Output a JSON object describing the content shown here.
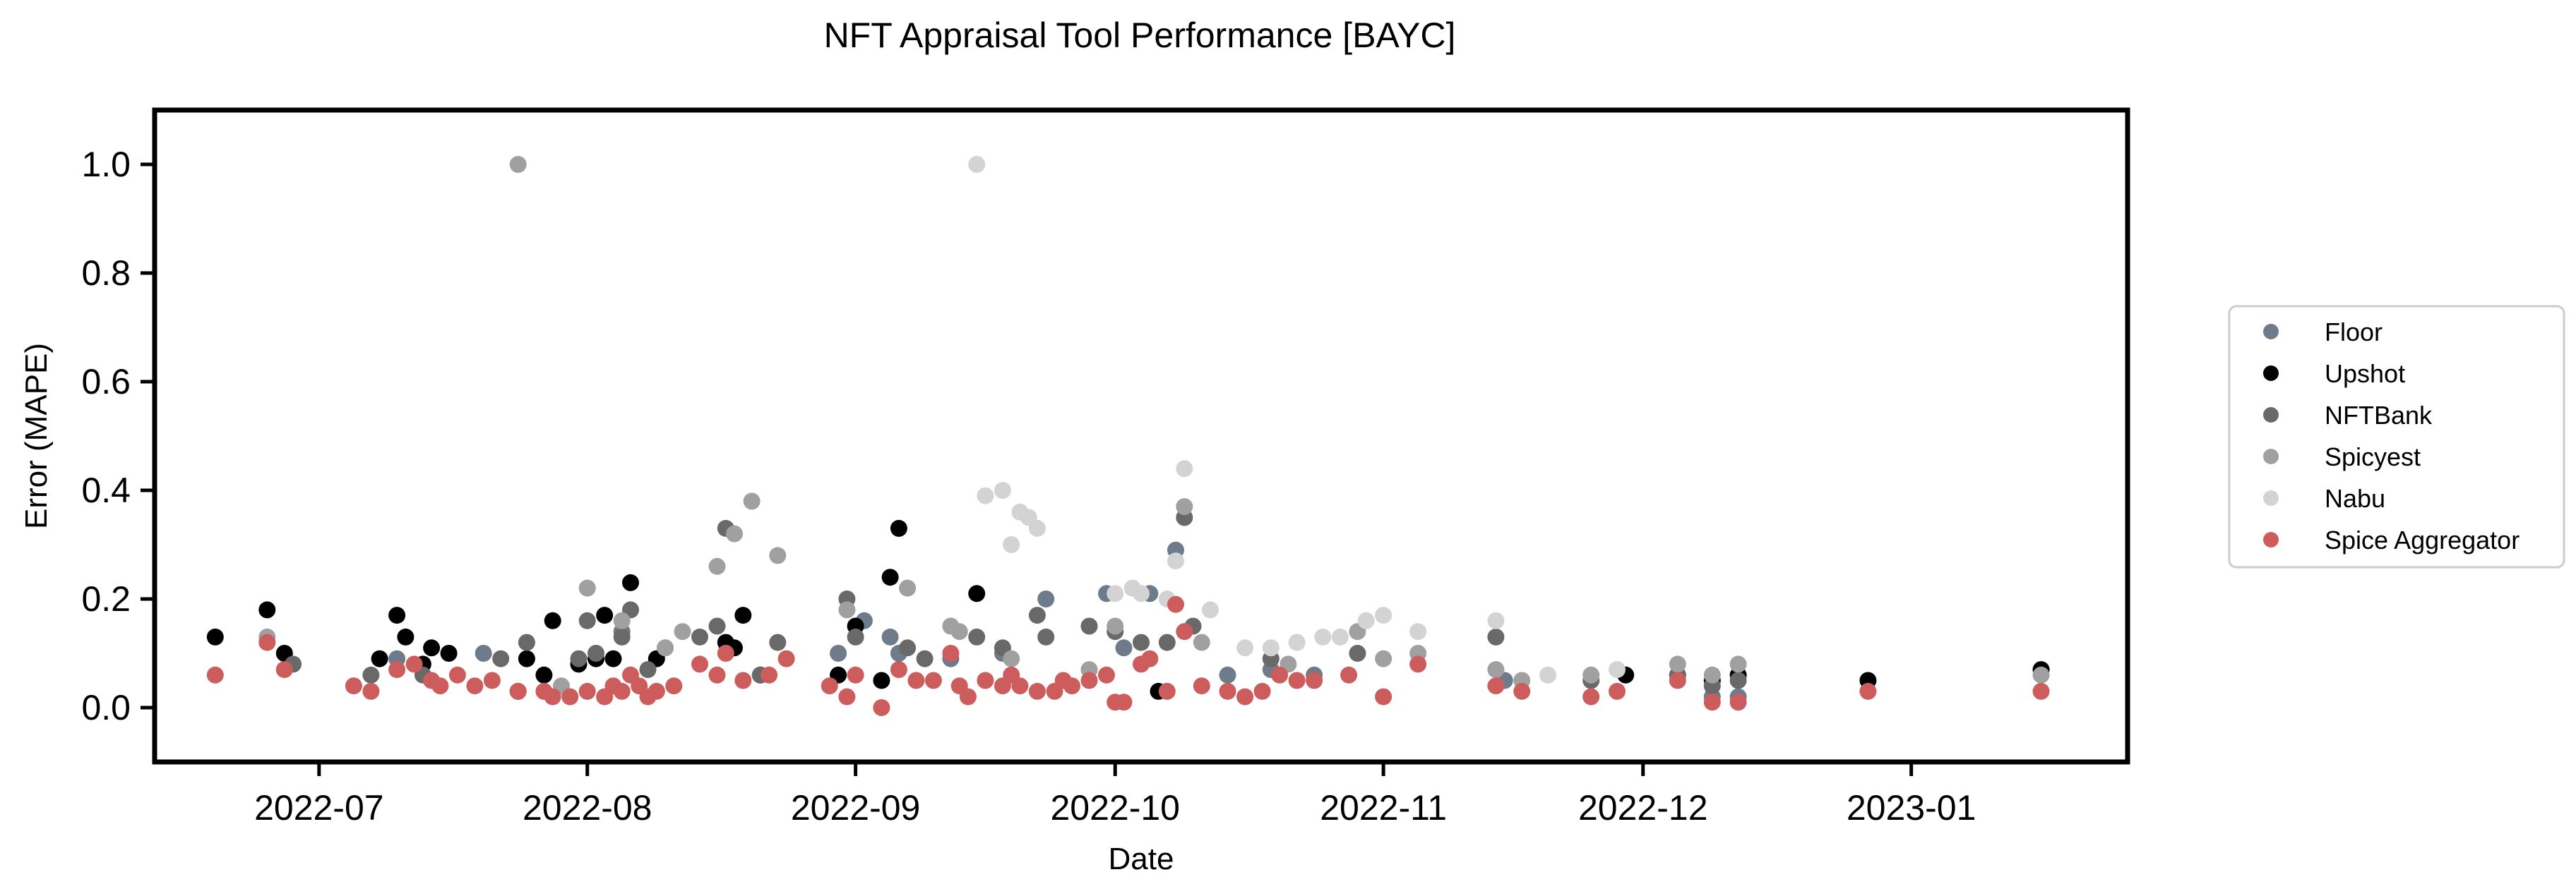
{
  "chart_data": {
    "type": "scatter",
    "title": "NFT Appraisal Tool Performance [BAYC]",
    "xlabel": "Date",
    "ylabel": "Error (MAPE)",
    "xlim": [
      "2022-06-12",
      "2023-01-26"
    ],
    "ylim": [
      -0.1,
      1.1
    ],
    "x_ticks": [
      "2022-07-01",
      "2022-08-01",
      "2022-09-01",
      "2022-10-01",
      "2022-11-01",
      "2022-12-01",
      "2023-01-01"
    ],
    "x_tick_labels": [
      "2022-07",
      "2022-08",
      "2022-09",
      "2022-10",
      "2022-11",
      "2022-12",
      "2023-01"
    ],
    "y_ticks": [
      0.0,
      0.2,
      0.4,
      0.6,
      0.8,
      1.0
    ],
    "y_tick_labels": [
      "0.0",
      "0.2",
      "0.4",
      "0.6",
      "0.8",
      "1.0"
    ],
    "grid": false,
    "legend_position": "right-center",
    "series": [
      {
        "name": "Floor",
        "color": "#6e7b8b",
        "points": [
          [
            "2022-07-10",
            0.09
          ],
          [
            "2022-07-20",
            0.1
          ],
          [
            "2022-08-05",
            0.14
          ],
          [
            "2022-08-10",
            0.11
          ],
          [
            "2022-08-30",
            0.1
          ],
          [
            "2022-09-02",
            0.16
          ],
          [
            "2022-09-05",
            0.13
          ],
          [
            "2022-09-06",
            0.1
          ],
          [
            "2022-09-12",
            0.09
          ],
          [
            "2022-09-18",
            0.1
          ],
          [
            "2022-09-23",
            0.2
          ],
          [
            "2022-09-30",
            0.21
          ],
          [
            "2022-10-02",
            0.11
          ],
          [
            "2022-10-05",
            0.21
          ],
          [
            "2022-10-08",
            0.29
          ],
          [
            "2022-10-14",
            0.06
          ],
          [
            "2022-10-19",
            0.07
          ],
          [
            "2022-10-24",
            0.06
          ],
          [
            "2022-11-15",
            0.05
          ],
          [
            "2022-12-09",
            0.02
          ],
          [
            "2022-12-12",
            0.02
          ]
        ]
      },
      {
        "name": "Upshot",
        "color": "#000000",
        "points": [
          [
            "2022-06-19",
            0.13
          ],
          [
            "2022-06-25",
            0.18
          ],
          [
            "2022-06-27",
            0.1
          ],
          [
            "2022-07-08",
            0.09
          ],
          [
            "2022-07-10",
            0.17
          ],
          [
            "2022-07-11",
            0.13
          ],
          [
            "2022-07-13",
            0.08
          ],
          [
            "2022-07-14",
            0.11
          ],
          [
            "2022-07-16",
            0.1
          ],
          [
            "2022-07-24",
            0.03
          ],
          [
            "2022-07-25",
            0.09
          ],
          [
            "2022-07-27",
            0.06
          ],
          [
            "2022-07-28",
            0.16
          ],
          [
            "2022-07-31",
            0.08
          ],
          [
            "2022-08-02",
            0.09
          ],
          [
            "2022-08-03",
            0.17
          ],
          [
            "2022-08-04",
            0.09
          ],
          [
            "2022-08-06",
            0.23
          ],
          [
            "2022-08-09",
            0.09
          ],
          [
            "2022-08-17",
            0.12
          ],
          [
            "2022-08-18",
            0.11
          ],
          [
            "2022-08-19",
            0.17
          ],
          [
            "2022-08-21",
            0.06
          ],
          [
            "2022-08-30",
            0.06
          ],
          [
            "2022-09-01",
            0.15
          ],
          [
            "2022-09-04",
            0.05
          ],
          [
            "2022-09-05",
            0.24
          ],
          [
            "2022-09-06",
            0.33
          ],
          [
            "2022-09-15",
            0.21
          ],
          [
            "2022-10-06",
            0.03
          ],
          [
            "2022-11-29",
            0.06
          ],
          [
            "2022-12-05",
            0.06
          ],
          [
            "2022-12-09",
            0.05
          ],
          [
            "2022-12-12",
            0.06
          ],
          [
            "2022-12-27",
            0.05
          ],
          [
            "2023-01-16",
            0.07
          ]
        ]
      },
      {
        "name": "NFTBank",
        "color": "#696969",
        "points": [
          [
            "2022-06-28",
            0.08
          ],
          [
            "2022-07-07",
            0.06
          ],
          [
            "2022-07-13",
            0.06
          ],
          [
            "2022-07-22",
            0.09
          ],
          [
            "2022-07-25",
            0.12
          ],
          [
            "2022-07-31",
            0.09
          ],
          [
            "2022-08-01",
            0.16
          ],
          [
            "2022-08-02",
            0.1
          ],
          [
            "2022-08-05",
            0.13
          ],
          [
            "2022-08-06",
            0.18
          ],
          [
            "2022-08-08",
            0.07
          ],
          [
            "2022-08-14",
            0.13
          ],
          [
            "2022-08-16",
            0.15
          ],
          [
            "2022-08-17",
            0.33
          ],
          [
            "2022-08-21",
            0.06
          ],
          [
            "2022-08-23",
            0.12
          ],
          [
            "2022-08-31",
            0.2
          ],
          [
            "2022-09-01",
            0.13
          ],
          [
            "2022-09-07",
            0.11
          ],
          [
            "2022-09-09",
            0.09
          ],
          [
            "2022-09-15",
            0.13
          ],
          [
            "2022-09-18",
            0.11
          ],
          [
            "2022-09-22",
            0.17
          ],
          [
            "2022-09-23",
            0.13
          ],
          [
            "2022-09-28",
            0.15
          ],
          [
            "2022-10-01",
            0.14
          ],
          [
            "2022-10-04",
            0.12
          ],
          [
            "2022-10-07",
            0.12
          ],
          [
            "2022-10-09",
            0.35
          ],
          [
            "2022-10-10",
            0.15
          ],
          [
            "2022-10-19",
            0.09
          ],
          [
            "2022-10-29",
            0.1
          ],
          [
            "2022-11-14",
            0.13
          ],
          [
            "2022-11-25",
            0.05
          ],
          [
            "2022-12-05",
            0.06
          ],
          [
            "2022-12-09",
            0.04
          ],
          [
            "2022-12-12",
            0.05
          ]
        ]
      },
      {
        "name": "Spicyest",
        "color": "#a0a0a0",
        "points": [
          [
            "2022-06-25",
            0.13
          ],
          [
            "2022-07-24",
            1.0
          ],
          [
            "2022-07-29",
            0.04
          ],
          [
            "2022-08-01",
            0.22
          ],
          [
            "2022-08-05",
            0.16
          ],
          [
            "2022-08-10",
            0.11
          ],
          [
            "2022-08-12",
            0.14
          ],
          [
            "2022-08-16",
            0.26
          ],
          [
            "2022-08-18",
            0.32
          ],
          [
            "2022-08-20",
            0.38
          ],
          [
            "2022-08-23",
            0.28
          ],
          [
            "2022-08-31",
            0.18
          ],
          [
            "2022-09-07",
            0.22
          ],
          [
            "2022-09-12",
            0.15
          ],
          [
            "2022-09-13",
            0.14
          ],
          [
            "2022-09-19",
            0.09
          ],
          [
            "2022-09-28",
            0.07
          ],
          [
            "2022-10-01",
            0.15
          ],
          [
            "2022-10-09",
            0.37
          ],
          [
            "2022-10-11",
            0.12
          ],
          [
            "2022-10-21",
            0.08
          ],
          [
            "2022-10-29",
            0.14
          ],
          [
            "2022-11-01",
            0.09
          ],
          [
            "2022-11-05",
            0.1
          ],
          [
            "2022-11-14",
            0.07
          ],
          [
            "2022-11-17",
            0.05
          ],
          [
            "2022-11-25",
            0.06
          ],
          [
            "2022-12-05",
            0.08
          ],
          [
            "2022-12-09",
            0.06
          ],
          [
            "2022-12-12",
            0.08
          ],
          [
            "2023-01-16",
            0.06
          ]
        ]
      },
      {
        "name": "Nabu",
        "color": "#d3d3d3",
        "points": [
          [
            "2022-09-15",
            1.0
          ],
          [
            "2022-09-16",
            0.39
          ],
          [
            "2022-09-18",
            0.4
          ],
          [
            "2022-09-19",
            0.3
          ],
          [
            "2022-09-20",
            0.36
          ],
          [
            "2022-09-21",
            0.35
          ],
          [
            "2022-09-22",
            0.33
          ],
          [
            "2022-10-01",
            0.21
          ],
          [
            "2022-10-03",
            0.22
          ],
          [
            "2022-10-04",
            0.21
          ],
          [
            "2022-10-07",
            0.2
          ],
          [
            "2022-10-08",
            0.27
          ],
          [
            "2022-10-09",
            0.44
          ],
          [
            "2022-10-12",
            0.18
          ],
          [
            "2022-10-16",
            0.11
          ],
          [
            "2022-10-19",
            0.11
          ],
          [
            "2022-10-22",
            0.12
          ],
          [
            "2022-10-25",
            0.13
          ],
          [
            "2022-10-27",
            0.13
          ],
          [
            "2022-10-30",
            0.16
          ],
          [
            "2022-11-01",
            0.17
          ],
          [
            "2022-11-05",
            0.14
          ],
          [
            "2022-11-14",
            0.16
          ],
          [
            "2022-11-20",
            0.06
          ],
          [
            "2022-11-28",
            0.07
          ]
        ]
      },
      {
        "name": "Spice Aggregator",
        "color": "#cd5c5c",
        "points": [
          [
            "2022-06-19",
            0.06
          ],
          [
            "2022-06-25",
            0.12
          ],
          [
            "2022-06-27",
            0.07
          ],
          [
            "2022-07-05",
            0.04
          ],
          [
            "2022-07-07",
            0.03
          ],
          [
            "2022-07-10",
            0.07
          ],
          [
            "2022-07-12",
            0.08
          ],
          [
            "2022-07-14",
            0.05
          ],
          [
            "2022-07-15",
            0.04
          ],
          [
            "2022-07-17",
            0.06
          ],
          [
            "2022-07-19",
            0.04
          ],
          [
            "2022-07-21",
            0.05
          ],
          [
            "2022-07-24",
            0.03
          ],
          [
            "2022-07-27",
            0.03
          ],
          [
            "2022-07-28",
            0.02
          ],
          [
            "2022-07-30",
            0.02
          ],
          [
            "2022-08-01",
            0.03
          ],
          [
            "2022-08-03",
            0.02
          ],
          [
            "2022-08-04",
            0.04
          ],
          [
            "2022-08-05",
            0.03
          ],
          [
            "2022-08-06",
            0.06
          ],
          [
            "2022-08-07",
            0.04
          ],
          [
            "2022-08-08",
            0.02
          ],
          [
            "2022-08-09",
            0.03
          ],
          [
            "2022-08-11",
            0.04
          ],
          [
            "2022-08-14",
            0.08
          ],
          [
            "2022-08-16",
            0.06
          ],
          [
            "2022-08-17",
            0.1
          ],
          [
            "2022-08-19",
            0.05
          ],
          [
            "2022-08-22",
            0.06
          ],
          [
            "2022-08-24",
            0.09
          ],
          [
            "2022-08-29",
            0.04
          ],
          [
            "2022-08-31",
            0.02
          ],
          [
            "2022-09-01",
            0.06
          ],
          [
            "2022-09-04",
            0.0
          ],
          [
            "2022-09-06",
            0.07
          ],
          [
            "2022-09-08",
            0.05
          ],
          [
            "2022-09-10",
            0.05
          ],
          [
            "2022-09-12",
            0.1
          ],
          [
            "2022-09-13",
            0.04
          ],
          [
            "2022-09-14",
            0.02
          ],
          [
            "2022-09-16",
            0.05
          ],
          [
            "2022-09-18",
            0.04
          ],
          [
            "2022-09-19",
            0.06
          ],
          [
            "2022-09-20",
            0.04
          ],
          [
            "2022-09-22",
            0.03
          ],
          [
            "2022-09-24",
            0.03
          ],
          [
            "2022-09-25",
            0.05
          ],
          [
            "2022-09-26",
            0.04
          ],
          [
            "2022-09-28",
            0.05
          ],
          [
            "2022-09-30",
            0.06
          ],
          [
            "2022-10-01",
            0.01
          ],
          [
            "2022-10-02",
            0.01
          ],
          [
            "2022-10-04",
            0.08
          ],
          [
            "2022-10-05",
            0.09
          ],
          [
            "2022-10-07",
            0.03
          ],
          [
            "2022-10-08",
            0.19
          ],
          [
            "2022-10-09",
            0.14
          ],
          [
            "2022-10-11",
            0.04
          ],
          [
            "2022-10-14",
            0.03
          ],
          [
            "2022-10-16",
            0.02
          ],
          [
            "2022-10-18",
            0.03
          ],
          [
            "2022-10-20",
            0.06
          ],
          [
            "2022-10-22",
            0.05
          ],
          [
            "2022-10-24",
            0.05
          ],
          [
            "2022-10-28",
            0.06
          ],
          [
            "2022-11-01",
            0.02
          ],
          [
            "2022-11-05",
            0.08
          ],
          [
            "2022-11-14",
            0.04
          ],
          [
            "2022-11-17",
            0.03
          ],
          [
            "2022-11-25",
            0.02
          ],
          [
            "2022-11-28",
            0.03
          ],
          [
            "2022-12-05",
            0.05
          ],
          [
            "2022-12-09",
            0.01
          ],
          [
            "2022-12-12",
            0.01
          ],
          [
            "2022-12-27",
            0.03
          ],
          [
            "2023-01-16",
            0.03
          ]
        ]
      }
    ]
  }
}
